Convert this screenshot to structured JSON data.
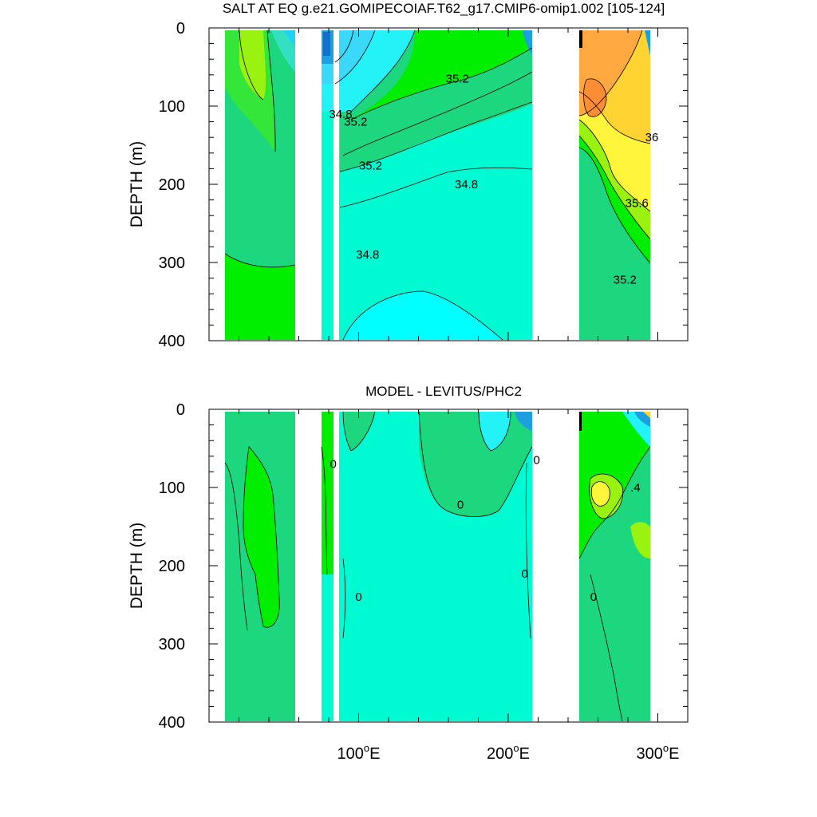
{
  "chart_data": [
    {
      "type": "contour",
      "title": "SALT AT EQ g.e21.GOMIPECOIAF.T62_g17.CMIP6-omip1.002 [105-124]",
      "ylabel": "DEPTH (m)",
      "ylim": [
        400,
        0
      ],
      "y_ticks": [
        "0",
        "100",
        "200",
        "300",
        "400"
      ],
      "xlim": [
        0,
        320
      ],
      "x_tick_values": [
        100,
        200,
        300
      ],
      "contour_labels": [
        {
          "text": "35.2",
          "x": 166,
          "y": 65
        },
        {
          "text": "34.8",
          "x": 88,
          "y": 110
        },
        {
          "text": "35.2",
          "x": 98,
          "y": 120
        },
        {
          "text": "35.2",
          "x": 108,
          "y": 176
        },
        {
          "text": "34.8",
          "x": 172,
          "y": 200
        },
        {
          "text": "36",
          "x": 296,
          "y": 140
        },
        {
          "text": "35.6",
          "x": 286,
          "y": 224
        },
        {
          "text": "34.8",
          "x": 106,
          "y": 290
        },
        {
          "text": "35.2",
          "x": 278,
          "y": 322
        }
      ]
    },
    {
      "type": "contour",
      "title": "MODEL - LEVITUS/PHC2",
      "ylabel": "DEPTH (m)",
      "ylim": [
        400,
        0
      ],
      "y_ticks": [
        "0",
        "100",
        "200",
        "300",
        "400"
      ],
      "xlim": [
        0,
        320
      ],
      "x_tick_values": [
        100,
        200,
        300
      ],
      "x_tick_labels": [
        "100°E",
        "200°E",
        "300°E"
      ],
      "contour_labels": [
        {
          "text": "0",
          "x": 83,
          "y": 70
        },
        {
          "text": "0",
          "x": 219,
          "y": 65
        },
        {
          "text": "0",
          "x": 168,
          "y": 122
        },
        {
          "text": ".4",
          "x": 285,
          "y": 100
        },
        {
          "text": "0",
          "x": 211,
          "y": 210
        },
        {
          "text": "0",
          "x": 100,
          "y": 240
        },
        {
          "text": "0",
          "x": 257,
          "y": 240
        }
      ]
    }
  ]
}
